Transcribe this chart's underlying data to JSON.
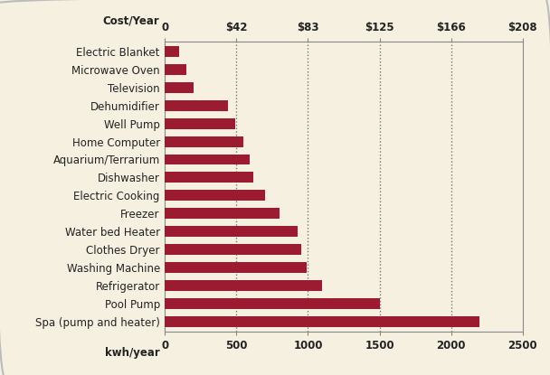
{
  "categories": [
    "Spa (pump and heater)",
    "Pool Pump",
    "Refrigerator",
    "Washing Machine",
    "Clothes Dryer",
    "Water bed Heater",
    "Freezer",
    "Electric Cooking",
    "Dishwasher",
    "Aquarium/Terrarium",
    "Home Computer",
    "Well Pump",
    "Dehumidifier",
    "Television",
    "Microwave Oven",
    "Electric Blanket"
  ],
  "values": [
    2200,
    1500,
    1100,
    990,
    950,
    930,
    800,
    700,
    620,
    590,
    550,
    490,
    440,
    200,
    150,
    100
  ],
  "bar_color": "#9B1B30",
  "background_color": "#F5F0E0",
  "xlim": [
    0,
    2500
  ],
  "plot_xlim": [
    0,
    2300
  ],
  "xticks_kwh": [
    0,
    500,
    1000,
    1500,
    2000,
    2500
  ],
  "xlabel": "kwh/year",
  "cost_label": "Cost/Year",
  "grid_color": "#777777",
  "label_fontsize": 8.5,
  "tick_fontsize": 8.5,
  "border_color": "#cccccc"
}
